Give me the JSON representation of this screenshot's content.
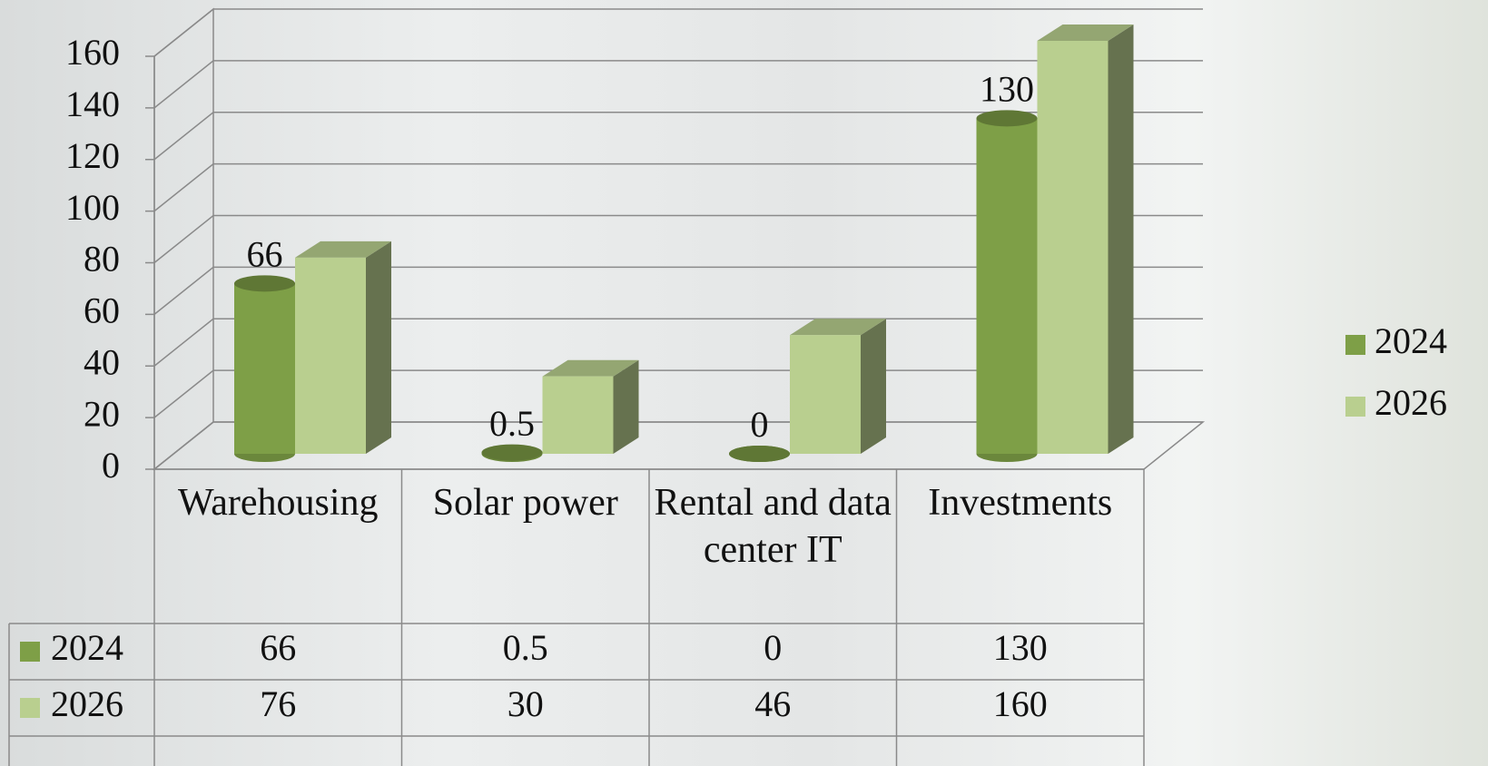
{
  "chart_data": {
    "type": "bar3d",
    "categories": [
      "Warehousing",
      "Solar power",
      "Rental and data center IT",
      "Investments"
    ],
    "series": [
      {
        "name": "2024",
        "color": "#7e9f47",
        "values": [
          66,
          0.5,
          0,
          130
        ],
        "shape": "cylinder",
        "data_labels": true
      },
      {
        "name": "2026",
        "color": "#b9cf8f",
        "values": [
          76,
          30,
          46,
          160
        ],
        "shape": "box",
        "data_labels": false
      }
    ],
    "ylim": [
      0,
      160
    ],
    "yticks": [
      0,
      20,
      40,
      60,
      80,
      100,
      120,
      140,
      160
    ],
    "grid": true,
    "legend": "right",
    "data_table": true
  }
}
